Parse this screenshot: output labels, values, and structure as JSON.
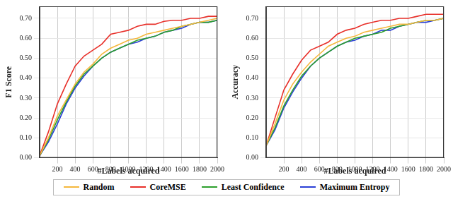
{
  "chart_data": [
    {
      "type": "line",
      "x_label": "#Labels acquired",
      "y_label": "F1 Score",
      "x": [
        0,
        100,
        200,
        300,
        400,
        500,
        600,
        700,
        800,
        900,
        1000,
        1100,
        1200,
        1300,
        1400,
        1500,
        1600,
        1700,
        1800,
        1900,
        2000
      ],
      "series": [
        {
          "name": "Random",
          "color": "#f5b83d",
          "values": [
            0.01,
            0.1,
            0.21,
            0.29,
            0.37,
            0.43,
            0.47,
            0.52,
            0.55,
            0.57,
            0.59,
            0.6,
            0.62,
            0.63,
            0.64,
            0.65,
            0.66,
            0.67,
            0.68,
            0.69,
            0.7
          ]
        },
        {
          "name": "CoreMSE",
          "color": "#e8302a",
          "values": [
            0.01,
            0.13,
            0.27,
            0.37,
            0.46,
            0.51,
            0.54,
            0.57,
            0.62,
            0.63,
            0.64,
            0.66,
            0.67,
            0.67,
            0.685,
            0.69,
            0.69,
            0.7,
            0.7,
            0.71,
            0.71
          ]
        },
        {
          "name": "Least Confidence",
          "color": "#2ca02c",
          "values": [
            0.01,
            0.09,
            0.19,
            0.28,
            0.36,
            0.42,
            0.46,
            0.5,
            0.53,
            0.55,
            0.57,
            0.59,
            0.6,
            0.61,
            0.63,
            0.64,
            0.66,
            0.67,
            0.68,
            0.68,
            0.69
          ]
        },
        {
          "name": "Maximum Entropy",
          "color": "#2a3fd6",
          "values": [
            0.01,
            0.08,
            0.17,
            0.27,
            0.35,
            0.41,
            0.46,
            0.5,
            0.53,
            0.55,
            0.57,
            0.58,
            0.6,
            0.61,
            0.63,
            0.64,
            0.65,
            0.67,
            0.68,
            0.68,
            0.69
          ]
        }
      ],
      "xlim": [
        0,
        2000
      ],
      "xticks": [
        200,
        400,
        600,
        800,
        1000,
        1200,
        1400,
        1600,
        1800,
        2000
      ],
      "ylim": [
        0,
        0.76
      ],
      "yticks": [
        {
          "value": 0,
          "label": "0.00"
        },
        {
          "value": 0.1,
          "label": "0.10"
        },
        {
          "value": 0.2,
          "label": "0.20"
        },
        {
          "value": 0.3,
          "label": "0.30"
        },
        {
          "value": 0.4,
          "label": "0.40"
        },
        {
          "value": 0.5,
          "label": "0.50"
        },
        {
          "value": 0.6,
          "label": "0.60"
        },
        {
          "value": 0.7,
          "label": "0.70"
        }
      ],
      "grid": true,
      "legend": "bottom"
    },
    {
      "type": "line",
      "x_label": "#Labels acquired",
      "y_label": "Accuracy",
      "x": [
        0,
        100,
        200,
        300,
        400,
        500,
        600,
        700,
        800,
        900,
        1000,
        1100,
        1200,
        1300,
        1400,
        1500,
        1600,
        1700,
        1800,
        1900,
        2000
      ],
      "series": [
        {
          "name": "Random",
          "color": "#f5b83d",
          "values": [
            0.06,
            0.17,
            0.29,
            0.37,
            0.43,
            0.48,
            0.52,
            0.56,
            0.58,
            0.6,
            0.61,
            0.63,
            0.64,
            0.65,
            0.66,
            0.67,
            0.67,
            0.68,
            0.69,
            0.69,
            0.7
          ]
        },
        {
          "name": "CoreMSE",
          "color": "#e8302a",
          "values": [
            0.06,
            0.2,
            0.34,
            0.42,
            0.49,
            0.54,
            0.56,
            0.58,
            0.62,
            0.64,
            0.65,
            0.67,
            0.68,
            0.69,
            0.69,
            0.7,
            0.7,
            0.71,
            0.72,
            0.72,
            0.72
          ]
        },
        {
          "name": "Least Confidence",
          "color": "#2ca02c",
          "values": [
            0.06,
            0.15,
            0.26,
            0.34,
            0.41,
            0.46,
            0.5,
            0.53,
            0.56,
            0.58,
            0.6,
            0.61,
            0.62,
            0.63,
            0.65,
            0.66,
            0.67,
            0.68,
            0.69,
            0.69,
            0.7
          ]
        },
        {
          "name": "Maximum Entropy",
          "color": "#2a3fd6",
          "values": [
            0.06,
            0.14,
            0.25,
            0.33,
            0.4,
            0.46,
            0.5,
            0.53,
            0.56,
            0.58,
            0.59,
            0.61,
            0.62,
            0.64,
            0.64,
            0.66,
            0.67,
            0.68,
            0.68,
            0.69,
            0.7
          ]
        }
      ],
      "xlim": [
        0,
        2000
      ],
      "xticks": [
        200,
        400,
        600,
        800,
        1000,
        1200,
        1400,
        1600,
        1800,
        2000
      ],
      "ylim": [
        0,
        0.76
      ],
      "yticks": [
        {
          "value": 0,
          "label": "0.00"
        },
        {
          "value": 0.1,
          "label": "0.10"
        },
        {
          "value": 0.2,
          "label": "0.20"
        },
        {
          "value": 0.3,
          "label": "0.30"
        },
        {
          "value": 0.4,
          "label": "0.40"
        },
        {
          "value": 0.5,
          "label": "0.50"
        },
        {
          "value": 0.6,
          "label": "0.60"
        },
        {
          "value": 0.7,
          "label": "0.70"
        }
      ],
      "grid": true
    }
  ]
}
